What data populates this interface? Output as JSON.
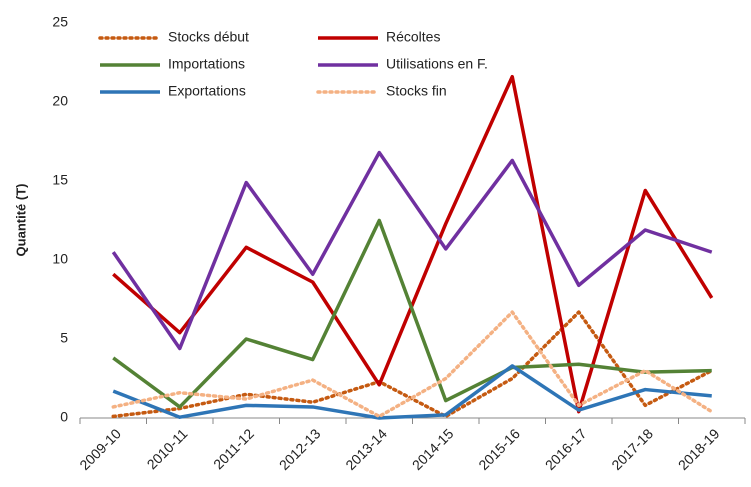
{
  "chart_data": {
    "type": "line",
    "y_label": "Quantité (T)",
    "categories": [
      "2009-10",
      "2010-11",
      "2011-12",
      "2012-13",
      "2013-14",
      "2014-15",
      "2015-16",
      "2016-17",
      "2017-18",
      "2018-19"
    ],
    "series": [
      {
        "name": "Stocks début",
        "color": "#c55a11",
        "style": "dotted",
        "values": [
          0.1,
          0.6,
          1.5,
          1.0,
          2.3,
          0.1,
          2.5,
          6.7,
          0.8,
          3.0
        ]
      },
      {
        "name": "Récoltes",
        "color": "#c00000",
        "style": "solid",
        "values": [
          9.1,
          5.4,
          10.8,
          8.6,
          2.1,
          12.3,
          21.6,
          0.4,
          14.4,
          7.6
        ]
      },
      {
        "name": "Importations",
        "color": "#548235",
        "style": "solid",
        "values": [
          3.8,
          0.7,
          5.0,
          3.7,
          12.5,
          1.1,
          3.2,
          3.4,
          2.9,
          3.0
        ]
      },
      {
        "name": "Utilisations en F.",
        "color": "#7030a0",
        "style": "solid",
        "values": [
          10.5,
          4.4,
          14.9,
          9.1,
          16.8,
          10.7,
          16.3,
          8.4,
          11.9,
          10.5
        ]
      },
      {
        "name": "Exportations",
        "color": "#2e75b6",
        "style": "solid",
        "values": [
          1.7,
          0.05,
          0.8,
          0.7,
          0.0,
          0.2,
          3.3,
          0.5,
          1.8,
          1.4
        ]
      },
      {
        "name": "Stocks fin",
        "color": "#f4b183",
        "style": "dotted",
        "values": [
          0.7,
          1.6,
          1.2,
          2.4,
          0.1,
          2.5,
          6.7,
          0.8,
          3.0,
          0.4
        ]
      }
    ],
    "ylim": [
      0,
      25
    ],
    "yticks": [
      0,
      5,
      10,
      15,
      20,
      25
    ],
    "grid": false
  }
}
